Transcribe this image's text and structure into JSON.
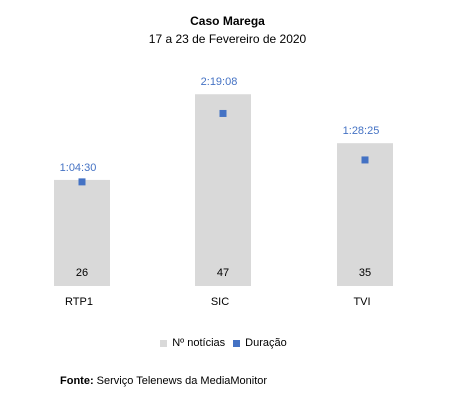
{
  "chart_data": {
    "type": "bar",
    "title": "Caso Marega",
    "subtitle": "17 a 23 de Fevereiro de 2020",
    "categories": [
      "RTP1",
      "SIC",
      "TVI"
    ],
    "series": [
      {
        "name": "Nº notícias",
        "type": "bar",
        "values": [
          26,
          47,
          35
        ],
        "labels": [
          "26",
          "47",
          "35"
        ]
      },
      {
        "name": "Duração",
        "type": "scatter",
        "values_seconds": [
          3870,
          8348,
          5305
        ],
        "labels": [
          "1:04:30",
          "2:19:08",
          "1:28:25"
        ]
      }
    ],
    "ylim": [
      0,
      50
    ],
    "duration_ylim_seconds": [
      0,
      10800
    ],
    "grid": false,
    "legend_position": "bottom",
    "colors": {
      "bar": "#d9d9d9",
      "marker": "#4472c4",
      "duration_label": "#4472c4",
      "text": "#000000"
    }
  },
  "source": {
    "label": "Fonte:",
    "text": "Serviço Telenews da MediaMonitor"
  }
}
